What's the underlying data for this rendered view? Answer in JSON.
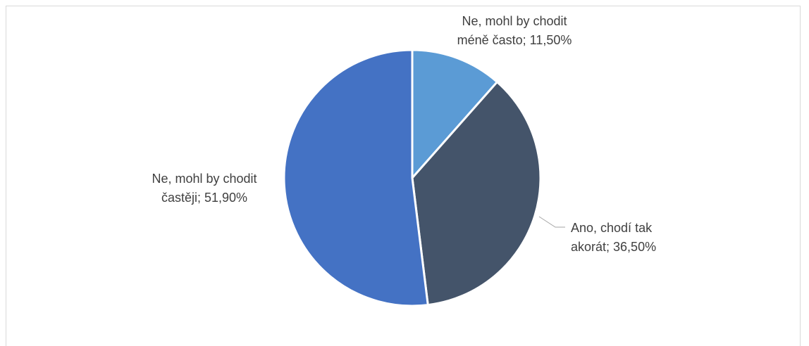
{
  "chart_data": {
    "type": "pie",
    "title": "",
    "slices": [
      {
        "name": "Ne, mohl by chodit méně často",
        "value": 11.5,
        "label_lines": [
          "Ne, mohl by chodit",
          "méně často; 11,50%"
        ],
        "color": "#5B9BD5"
      },
      {
        "name": "Ano, chodí tak akorát",
        "value": 36.5,
        "label_lines": [
          "Ano, chodí tak",
          "akorát; 36,50%"
        ],
        "color": "#44546A"
      },
      {
        "name": "Ne, mohl by chodit častěji",
        "value": 51.9,
        "label_lines": [
          "Ne, mohl by chodit",
          "častěji; 51,90%"
        ],
        "color": "#4472C4"
      }
    ],
    "start_angle_deg": 0,
    "direction": "clockwise",
    "slice_border_color": "#ffffff",
    "leader_line_color": "#a6a6a6",
    "label_color": "#404040",
    "legend": "none"
  }
}
